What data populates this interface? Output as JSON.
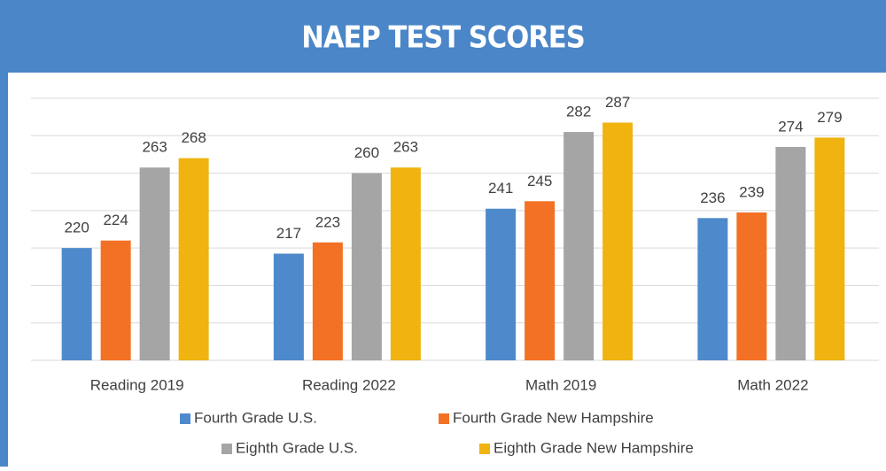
{
  "chart_data": {
    "type": "bar",
    "title": "NAEP TEST SCORES",
    "categories": [
      "Reading 2019",
      "Reading 2022",
      "Math 2019",
      "Math 2022"
    ],
    "series": [
      {
        "name": "Fourth Grade U.S.",
        "color": "#4e8acb",
        "values": [
          220,
          217,
          241,
          236
        ]
      },
      {
        "name": "Fourth Grade New Hampshire",
        "color": "#f37125",
        "values": [
          224,
          223,
          245,
          239
        ]
      },
      {
        "name": "Eighth Grade U.S.",
        "color": "#a5a5a5",
        "values": [
          263,
          260,
          282,
          274
        ]
      },
      {
        "name": "Eighth Grade New Hampshire",
        "color": "#f0b30f",
        "values": [
          268,
          263,
          287,
          279
        ]
      }
    ],
    "ylim": [
      160,
      300
    ],
    "yticks": [
      160,
      180,
      200,
      220,
      240,
      260,
      280,
      300
    ],
    "grid": true,
    "show_tick_labels": false,
    "data_labels": true,
    "legend": "bottom"
  }
}
